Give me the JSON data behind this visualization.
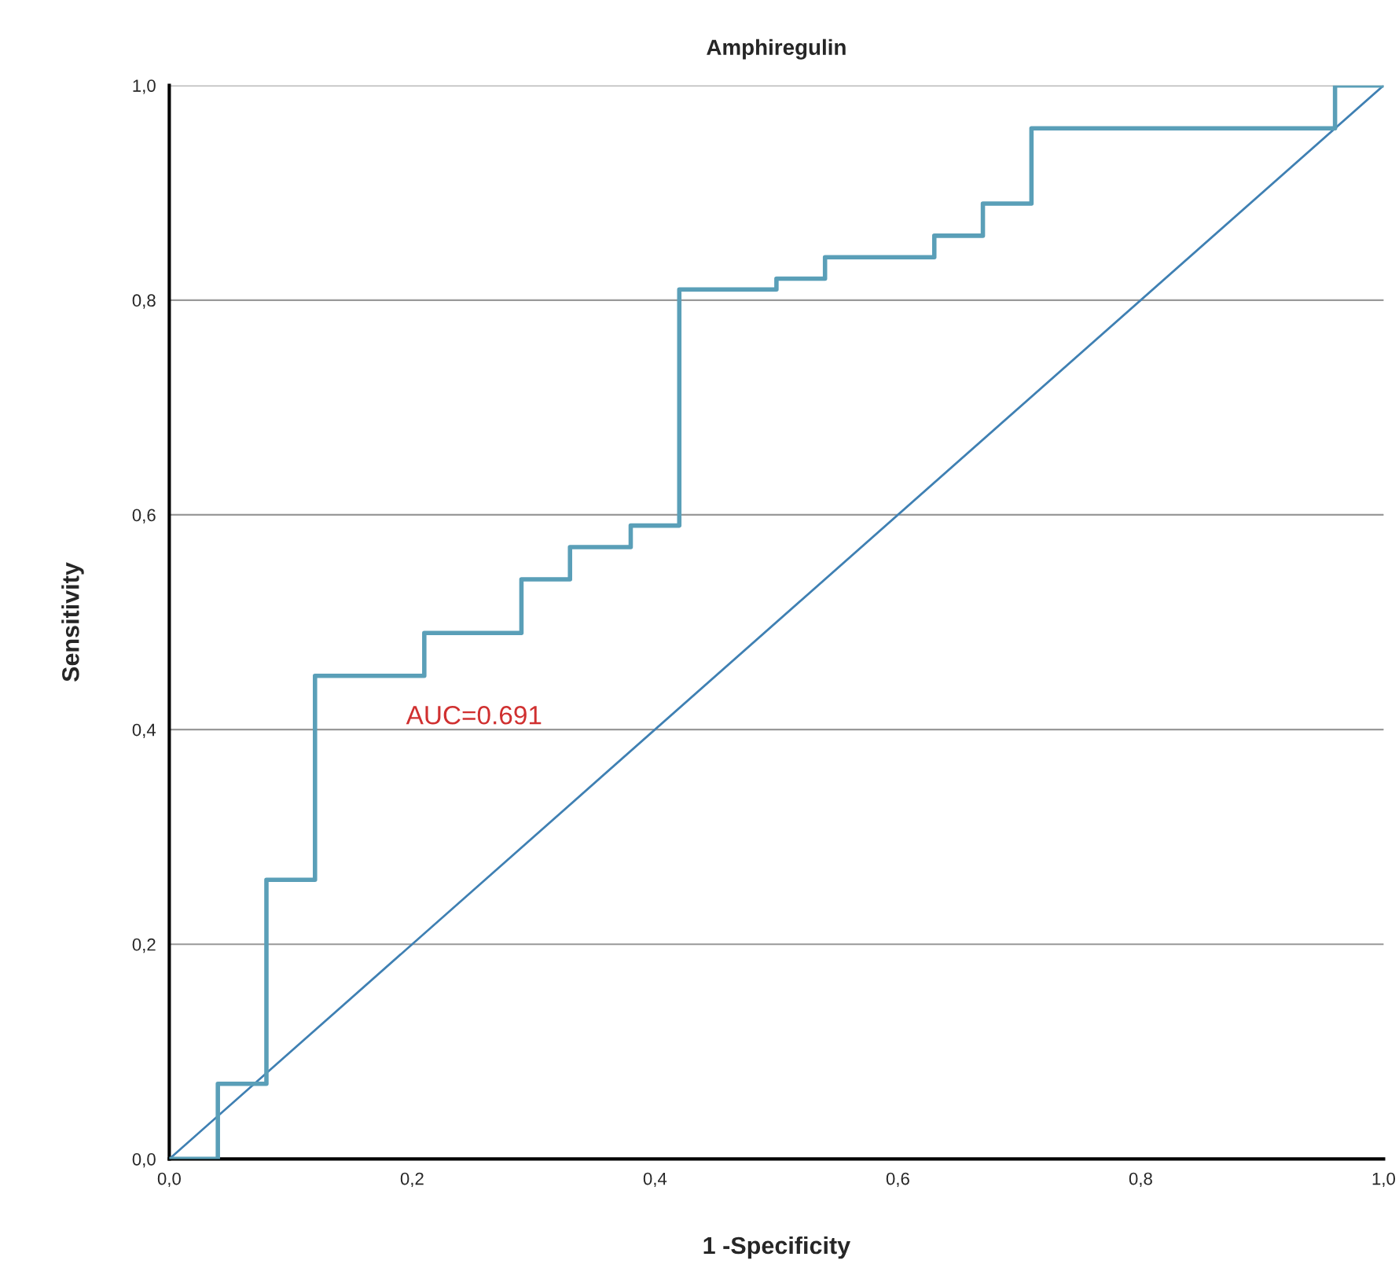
{
  "chart_data": {
    "type": "step",
    "title": "Amphiregulin",
    "xlabel": "1 -Specificity",
    "ylabel": "Sensitivity",
    "series": [
      {
        "color": "#5a9fb8",
        "x": [
          0,
          0.04,
          0.08,
          0.12,
          0.21,
          0.29,
          0.33,
          0.38,
          0.42,
          0.5,
          0.54,
          0.63,
          0.67,
          0.71,
          0.96,
          1.0
        ],
        "values": [
          0,
          0.07,
          0.26,
          0.45,
          0.49,
          0.54,
          0.57,
          0.59,
          0.81,
          0.82,
          0.84,
          0.86,
          0.89,
          0.96,
          1.0,
          1.0
        ]
      },
      {
        "type": "line",
        "color": "#3f80b3",
        "x": [
          0,
          1
        ],
        "values": [
          0,
          1
        ]
      }
    ],
    "annotations": [
      "AUC=0.691"
    ],
    "xlim": [
      0,
      1
    ],
    "ylim": [
      0,
      1
    ],
    "xticks": [
      {
        "value": 0,
        "label": "0,0"
      },
      {
        "value": 0.2,
        "label": "0,2"
      },
      {
        "value": 0.4,
        "label": "0,4"
      },
      {
        "value": 0.6,
        "label": "0,6"
      },
      {
        "value": 0.8,
        "label": "0,8"
      },
      {
        "value": 1.0,
        "label": "1,0"
      }
    ],
    "yticks": [
      {
        "value": 0,
        "label": "0,0"
      },
      {
        "value": 0.2,
        "label": "0,2"
      },
      {
        "value": 0.4,
        "label": "0,4"
      },
      {
        "value": 0.6,
        "label": "0,6"
      },
      {
        "value": 0.8,
        "label": "0,8"
      },
      {
        "value": 1.0,
        "label": "1,0"
      }
    ],
    "grid": "y",
    "legend": false
  }
}
